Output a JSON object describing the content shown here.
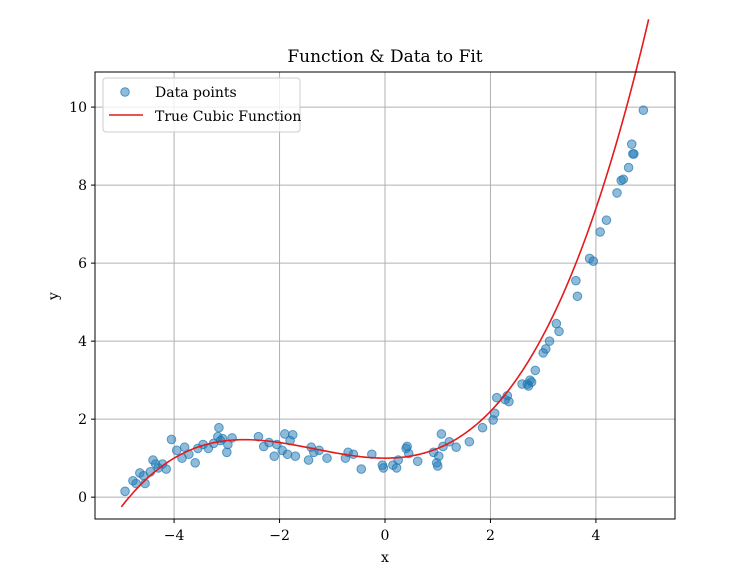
{
  "chart_data": {
    "type": "scatter",
    "title": "Function & Data to Fit",
    "xlabel": "x",
    "ylabel": "y",
    "xlim": [
      -5.5,
      5.5
    ],
    "ylim": [
      -0.56,
      10.9
    ],
    "xticks": [
      -4,
      -2,
      0,
      2,
      4
    ],
    "xtick_labels": [
      "−4",
      "−2",
      "0",
      "2",
      "4"
    ],
    "yticks": [
      0,
      2,
      4,
      6,
      8,
      10
    ],
    "ytick_labels": [
      "0",
      "2",
      "4",
      "6",
      "8",
      "10"
    ],
    "grid": true,
    "legend_position": "upper-left",
    "colors": {
      "points": "#1f77b4",
      "line": "#e41a1c"
    },
    "series": [
      {
        "name": "Data points",
        "kind": "scatter",
        "x": [
          -4.93,
          -4.78,
          -4.72,
          -4.65,
          -4.58,
          -4.55,
          -4.45,
          -4.4,
          -4.35,
          -4.3,
          -4.22,
          -4.15,
          -4.05,
          -3.95,
          -3.85,
          -3.8,
          -3.72,
          -3.6,
          -3.55,
          -3.45,
          -3.35,
          -3.25,
          -3.17,
          -3.15,
          -3.12,
          -3.08,
          -3.0,
          -2.98,
          -2.9,
          -2.4,
          -2.3,
          -2.2,
          -2.1,
          -2.05,
          -1.95,
          -1.9,
          -1.85,
          -1.8,
          -1.75,
          -1.7,
          -1.45,
          -1.4,
          -1.35,
          -1.25,
          -1.1,
          -0.75,
          -0.7,
          -0.6,
          -0.45,
          -0.25,
          -0.05,
          -0.03,
          0.15,
          0.22,
          0.25,
          0.4,
          0.42,
          0.45,
          0.62,
          0.92,
          0.98,
          1.0,
          1.02,
          1.07,
          1.1,
          1.22,
          1.35,
          1.6,
          1.85,
          2.05,
          2.08,
          2.12,
          2.28,
          2.32,
          2.35,
          2.6,
          2.7,
          2.72,
          2.75,
          2.78,
          2.85,
          3.0,
          3.05,
          3.12,
          3.25,
          3.3,
          3.62,
          3.65,
          3.88,
          3.95,
          4.08,
          4.2,
          4.4,
          4.48,
          4.52,
          4.62,
          4.68,
          4.7,
          4.72,
          4.9
        ],
        "y": [
          0.15,
          0.42,
          0.35,
          0.62,
          0.55,
          0.35,
          0.65,
          0.95,
          0.85,
          0.75,
          0.85,
          0.72,
          1.48,
          1.2,
          1.0,
          1.28,
          1.1,
          0.88,
          1.25,
          1.35,
          1.25,
          1.38,
          1.55,
          1.78,
          1.45,
          1.5,
          1.15,
          1.35,
          1.52,
          1.55,
          1.3,
          1.4,
          1.05,
          1.35,
          1.2,
          1.62,
          1.1,
          1.45,
          1.6,
          1.05,
          0.95,
          1.28,
          1.15,
          1.2,
          1.0,
          1.0,
          1.15,
          1.1,
          0.72,
          1.1,
          0.82,
          0.75,
          0.82,
          0.75,
          0.95,
          1.25,
          1.3,
          1.12,
          0.92,
          1.15,
          0.88,
          0.8,
          1.05,
          1.62,
          1.3,
          1.42,
          1.28,
          1.42,
          1.78,
          1.98,
          2.15,
          2.55,
          2.5,
          2.6,
          2.45,
          2.9,
          2.9,
          2.85,
          3.0,
          2.95,
          3.25,
          3.7,
          3.8,
          4.0,
          4.45,
          4.25,
          5.55,
          5.15,
          6.12,
          6.05,
          6.8,
          7.1,
          7.8,
          8.12,
          8.15,
          8.45,
          9.05,
          8.8,
          8.8,
          9.92
        ]
      },
      {
        "name": "True Cubic Function",
        "kind": "line",
        "formula": "0.05x^3 + 0.2x^2 + 1"
      }
    ]
  }
}
